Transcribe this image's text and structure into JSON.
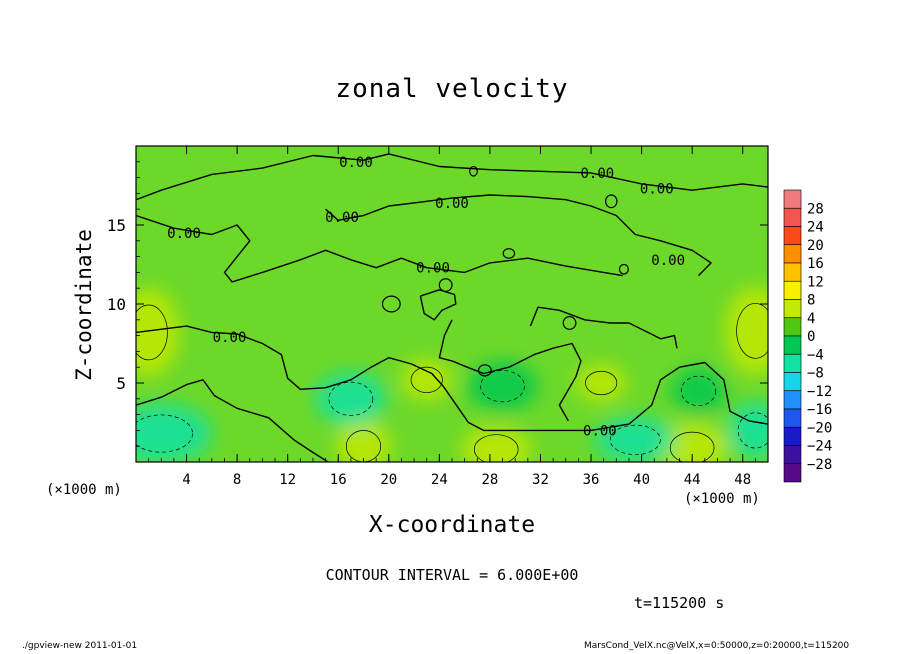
{
  "page": {
    "footer_left": "./gpview-new  2011-01-01",
    "footer_right": "MarsCond_VelX.nc@VelX,x=0:50000,z=0:20000,t=115200"
  },
  "chart_data": {
    "type": "heatmap",
    "title": "zonal velocity",
    "xlabel": "X-coordinate",
    "ylabel": "Z-coordinate",
    "x_unit_left": "(×1000 m)",
    "x_unit_right": "(×1000 m)",
    "xlim": [
      0,
      50
    ],
    "ylim": [
      0,
      20
    ],
    "x_ticks": [
      4,
      8,
      12,
      16,
      20,
      24,
      28,
      32,
      36,
      40,
      44,
      48
    ],
    "y_ticks": [
      5,
      10,
      15
    ],
    "contour_interval_text": "CONTOUR INTERVAL = 6.000E+00",
    "time_text": "t=115200 s",
    "contour_labels": [
      {
        "text": "0.00",
        "x": 17.4,
        "y": 19.0
      },
      {
        "text": "0.00",
        "x": 36.5,
        "y": 18.3
      },
      {
        "text": "0.00",
        "x": 41.2,
        "y": 17.3
      },
      {
        "text": "0.00",
        "x": 25.0,
        "y": 16.4
      },
      {
        "text": "0.00",
        "x": 16.3,
        "y": 15.5
      },
      {
        "text": "0.00",
        "x": 3.8,
        "y": 14.5
      },
      {
        "text": "0.00",
        "x": 42.1,
        "y": 12.8
      },
      {
        "text": "0.00",
        "x": 23.5,
        "y": 12.3
      },
      {
        "text": "0.00",
        "x": 7.4,
        "y": 7.9
      },
      {
        "text": "0.00",
        "x": 36.7,
        "y": 2.0
      }
    ],
    "colorbar": {
      "levels": [
        28,
        24,
        20,
        16,
        12,
        8,
        4,
        0,
        -4,
        -8,
        -12,
        -16,
        -20,
        -24,
        -28
      ],
      "colors": [
        "#f07a7e",
        "#f4564f",
        "#fb4a13",
        "#ff8e00",
        "#ffc000",
        "#f7f000",
        "#c2ea05",
        "#4ec815",
        "#00c850",
        "#10e2a4",
        "#14d6e6",
        "#2090ff",
        "#1f56f0",
        "#1a1ac8",
        "#3c10a0",
        "#560a8a"
      ]
    },
    "field": {
      "background": "#6cd82a",
      "features": [
        {
          "kind": "positive",
          "x": 1.0,
          "y": 8.2,
          "rx": 2.4,
          "ry": 2.8,
          "value": 6
        },
        {
          "kind": "positive",
          "x": 49.0,
          "y": 8.3,
          "rx": 2.4,
          "ry": 2.8,
          "value": 6
        },
        {
          "kind": "positive",
          "x": 18.0,
          "y": 1.0,
          "rx": 2.2,
          "ry": 1.6,
          "value": 6
        },
        {
          "kind": "positive",
          "x": 28.5,
          "y": 0.8,
          "rx": 2.8,
          "ry": 1.5,
          "value": 6
        },
        {
          "kind": "positive",
          "x": 44.0,
          "y": 0.9,
          "rx": 2.8,
          "ry": 1.6,
          "value": 6
        },
        {
          "kind": "positive",
          "x": 23.0,
          "y": 5.2,
          "rx": 2.0,
          "ry": 1.3,
          "value": 4
        },
        {
          "kind": "positive",
          "x": 36.8,
          "y": 5.0,
          "rx": 2.0,
          "ry": 1.2,
          "value": 4
        },
        {
          "kind": "negative",
          "x": 2.0,
          "y": 1.8,
          "rx": 4.0,
          "ry": 1.9,
          "value": -6
        },
        {
          "kind": "negative",
          "x": 17.0,
          "y": 4.0,
          "rx": 2.8,
          "ry": 1.7,
          "value": -5
        },
        {
          "kind": "negative",
          "x": 29.0,
          "y": 4.8,
          "rx": 2.8,
          "ry": 1.6,
          "value": -4
        },
        {
          "kind": "negative",
          "x": 39.5,
          "y": 1.4,
          "rx": 3.2,
          "ry": 1.5,
          "value": -6
        },
        {
          "kind": "negative",
          "x": 44.5,
          "y": 4.5,
          "rx": 2.2,
          "ry": 1.5,
          "value": -4
        },
        {
          "kind": "negative",
          "x": 49.0,
          "y": 2.0,
          "rx": 2.2,
          "ry": 1.8,
          "value": -6
        }
      ]
    }
  }
}
